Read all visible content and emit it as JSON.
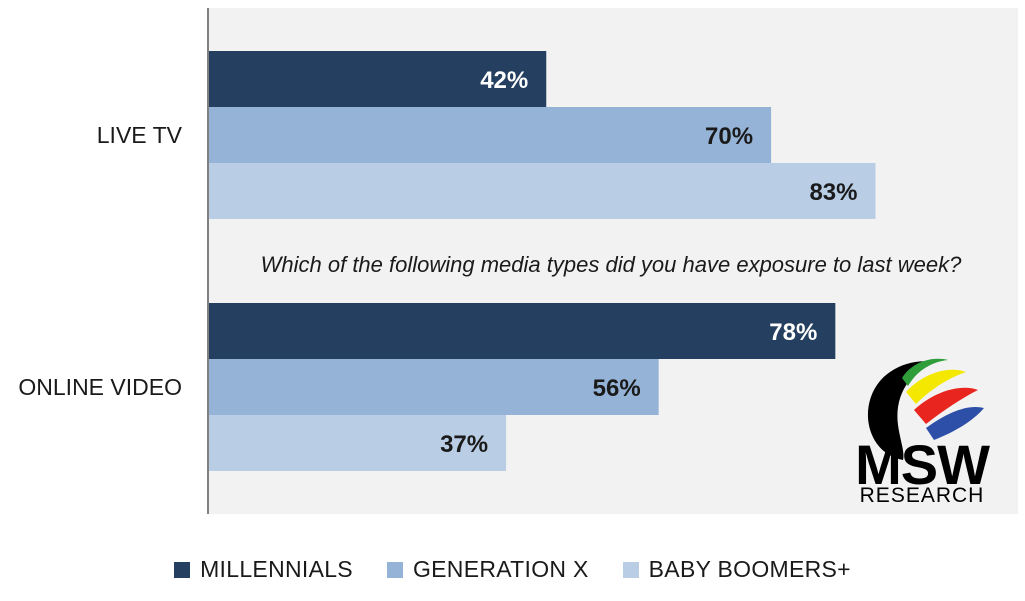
{
  "chart_data": {
    "type": "bar",
    "orientation": "horizontal",
    "categories": [
      "LIVE TV",
      "ONLINE VIDEO"
    ],
    "series": [
      {
        "name": "MILLENNIALS",
        "values": [
          42,
          78
        ],
        "labels": [
          "42%",
          "78%"
        ],
        "color": "#243f60",
        "label_color": "#ffffff"
      },
      {
        "name": "GENERATION X",
        "values": [
          70,
          56
        ],
        "labels": [
          "70%",
          "56%"
        ],
        "color": "#95b3d7",
        "label_color": "#1a1a1a"
      },
      {
        "name": "BABY BOOMERS+",
        "values": [
          83,
          37
        ],
        "labels": [
          "83%",
          "37%"
        ],
        "color": "#b9cde5",
        "label_color": "#1a1a1a"
      }
    ],
    "annotation": "Which of the following media types did you have exposure to last week?",
    "xlim": [
      0,
      100
    ],
    "grid": false,
    "legend_position": "bottom",
    "plot_background": "#f2f2f2"
  },
  "logo": {
    "text_main": "MSW",
    "text_sub": "RESEARCH",
    "colors": [
      "#000000",
      "#2e9d3a",
      "#f5e800",
      "#e8251e",
      "#2d4fa8"
    ]
  }
}
